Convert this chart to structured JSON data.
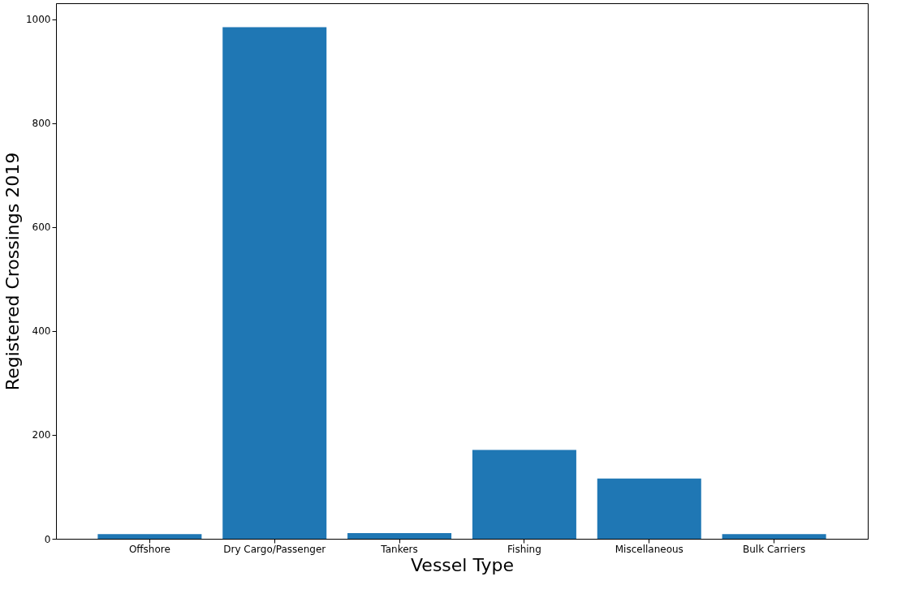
{
  "chart_data": {
    "type": "bar",
    "xlabel": "Vessel Type",
    "ylabel": "Registered Crossings 2019",
    "categories": [
      "Offshore",
      "Dry Cargo/Passenger",
      "Tankers",
      "Fishing",
      "Miscellaneous",
      "Bulk Carriers"
    ],
    "values": [
      9,
      985,
      11,
      171,
      116,
      9
    ],
    "color": "#1f77b4",
    "ylim": [
      0,
      1031
    ],
    "yticks": [
      0,
      200,
      400,
      600,
      800,
      1000
    ],
    "grid": false
  }
}
